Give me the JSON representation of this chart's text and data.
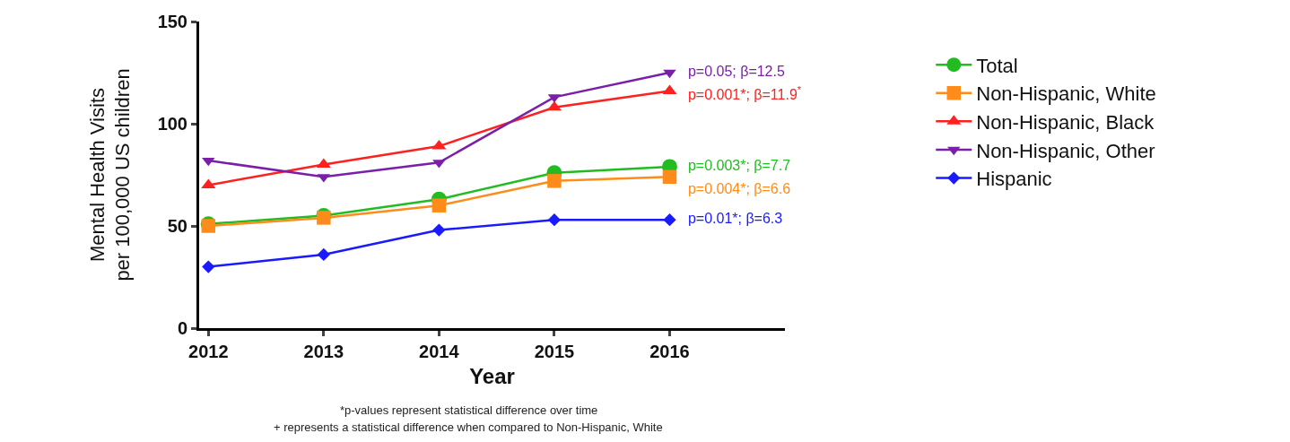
{
  "chart_data": {
    "type": "line",
    "xlabel": "Year",
    "ylabel": "Mental Health Visits\nper 100,000 US children",
    "x": [
      2012,
      2013,
      2014,
      2015,
      2016
    ],
    "series": [
      {
        "name": "Total",
        "color": "#22bb22",
        "marker": "circle",
        "values": [
          51,
          55,
          63,
          76,
          79
        ]
      },
      {
        "name": "Non-Hispanic, White",
        "color": "#ff8c1a",
        "marker": "square",
        "values": [
          50,
          54,
          60,
          72,
          74
        ]
      },
      {
        "name": "Non-Hispanic, Black",
        "color": "#ff2020",
        "marker": "triangle",
        "values": [
          70,
          80,
          89,
          108,
          116
        ]
      },
      {
        "name": "Non-Hispanic, Other",
        "color": "#7a1fa8",
        "marker": "triangle-down",
        "values": [
          82,
          74,
          81,
          113,
          125
        ]
      },
      {
        "name": "Hispanic",
        "color": "#1a1aff",
        "marker": "diamond",
        "values": [
          30,
          36,
          48,
          53,
          53
        ]
      }
    ],
    "xlim": [
      2011.92,
      2017
    ],
    "xticks": [
      2012,
      2013,
      2014,
      2015,
      2016
    ],
    "ylim": [
      0,
      150
    ],
    "yticks": [
      0,
      50,
      100,
      150
    ],
    "line_style": "solid",
    "legend": "right",
    "annotations": [
      "p=0.05; β=12.5",
      "p=0.001*; β=11.9$^{*}$",
      "p=0.003*; β=7.7",
      "p=0.004*; β=6.6",
      "p=0.01*; β=6.3",
      "*p-values represent statistical difference over time",
      "+ represents a statistical difference when compared to Non-Hispanic, White"
    ]
  }
}
